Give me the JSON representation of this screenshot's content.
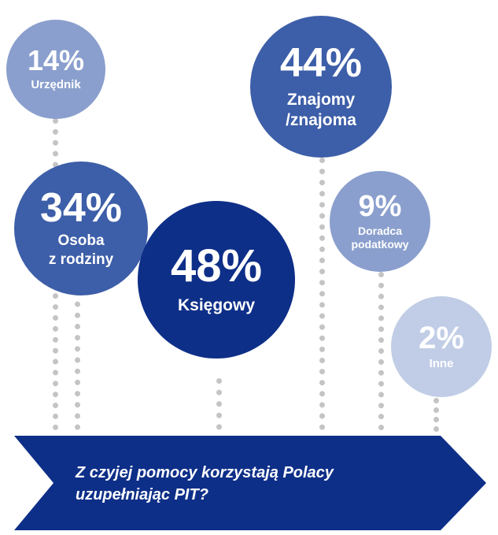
{
  "chart_data": {
    "type": "bubble",
    "title": "Z czyjej pomocy korzystają Polacy uzupełniając PIT?",
    "items": [
      {
        "label": "Urzędnik",
        "value": 14,
        "value_text": "14%",
        "color": "#8a9fcd"
      },
      {
        "label": "Osoba\nz rodziny",
        "value": 34,
        "value_text": "34%",
        "color": "#3d5ea8"
      },
      {
        "label": "Księgowy",
        "value": 48,
        "value_text": "48%",
        "color": "#0e2f88"
      },
      {
        "label": "Znajomy\n/znajoma",
        "value": 44,
        "value_text": "44%",
        "color": "#3d5ea8"
      },
      {
        "label": "Doradca\npodatkowy",
        "value": 9,
        "value_text": "9%",
        "color": "#8a9fcd"
      },
      {
        "label": "Inne",
        "value": 2,
        "value_text": "2%",
        "color": "#c1cde6"
      }
    ]
  },
  "banner": {
    "line1": "Z czyjej pomocy korzystają Polacy",
    "line2": "uzupełniając PIT?",
    "color": "#0e2f88"
  }
}
